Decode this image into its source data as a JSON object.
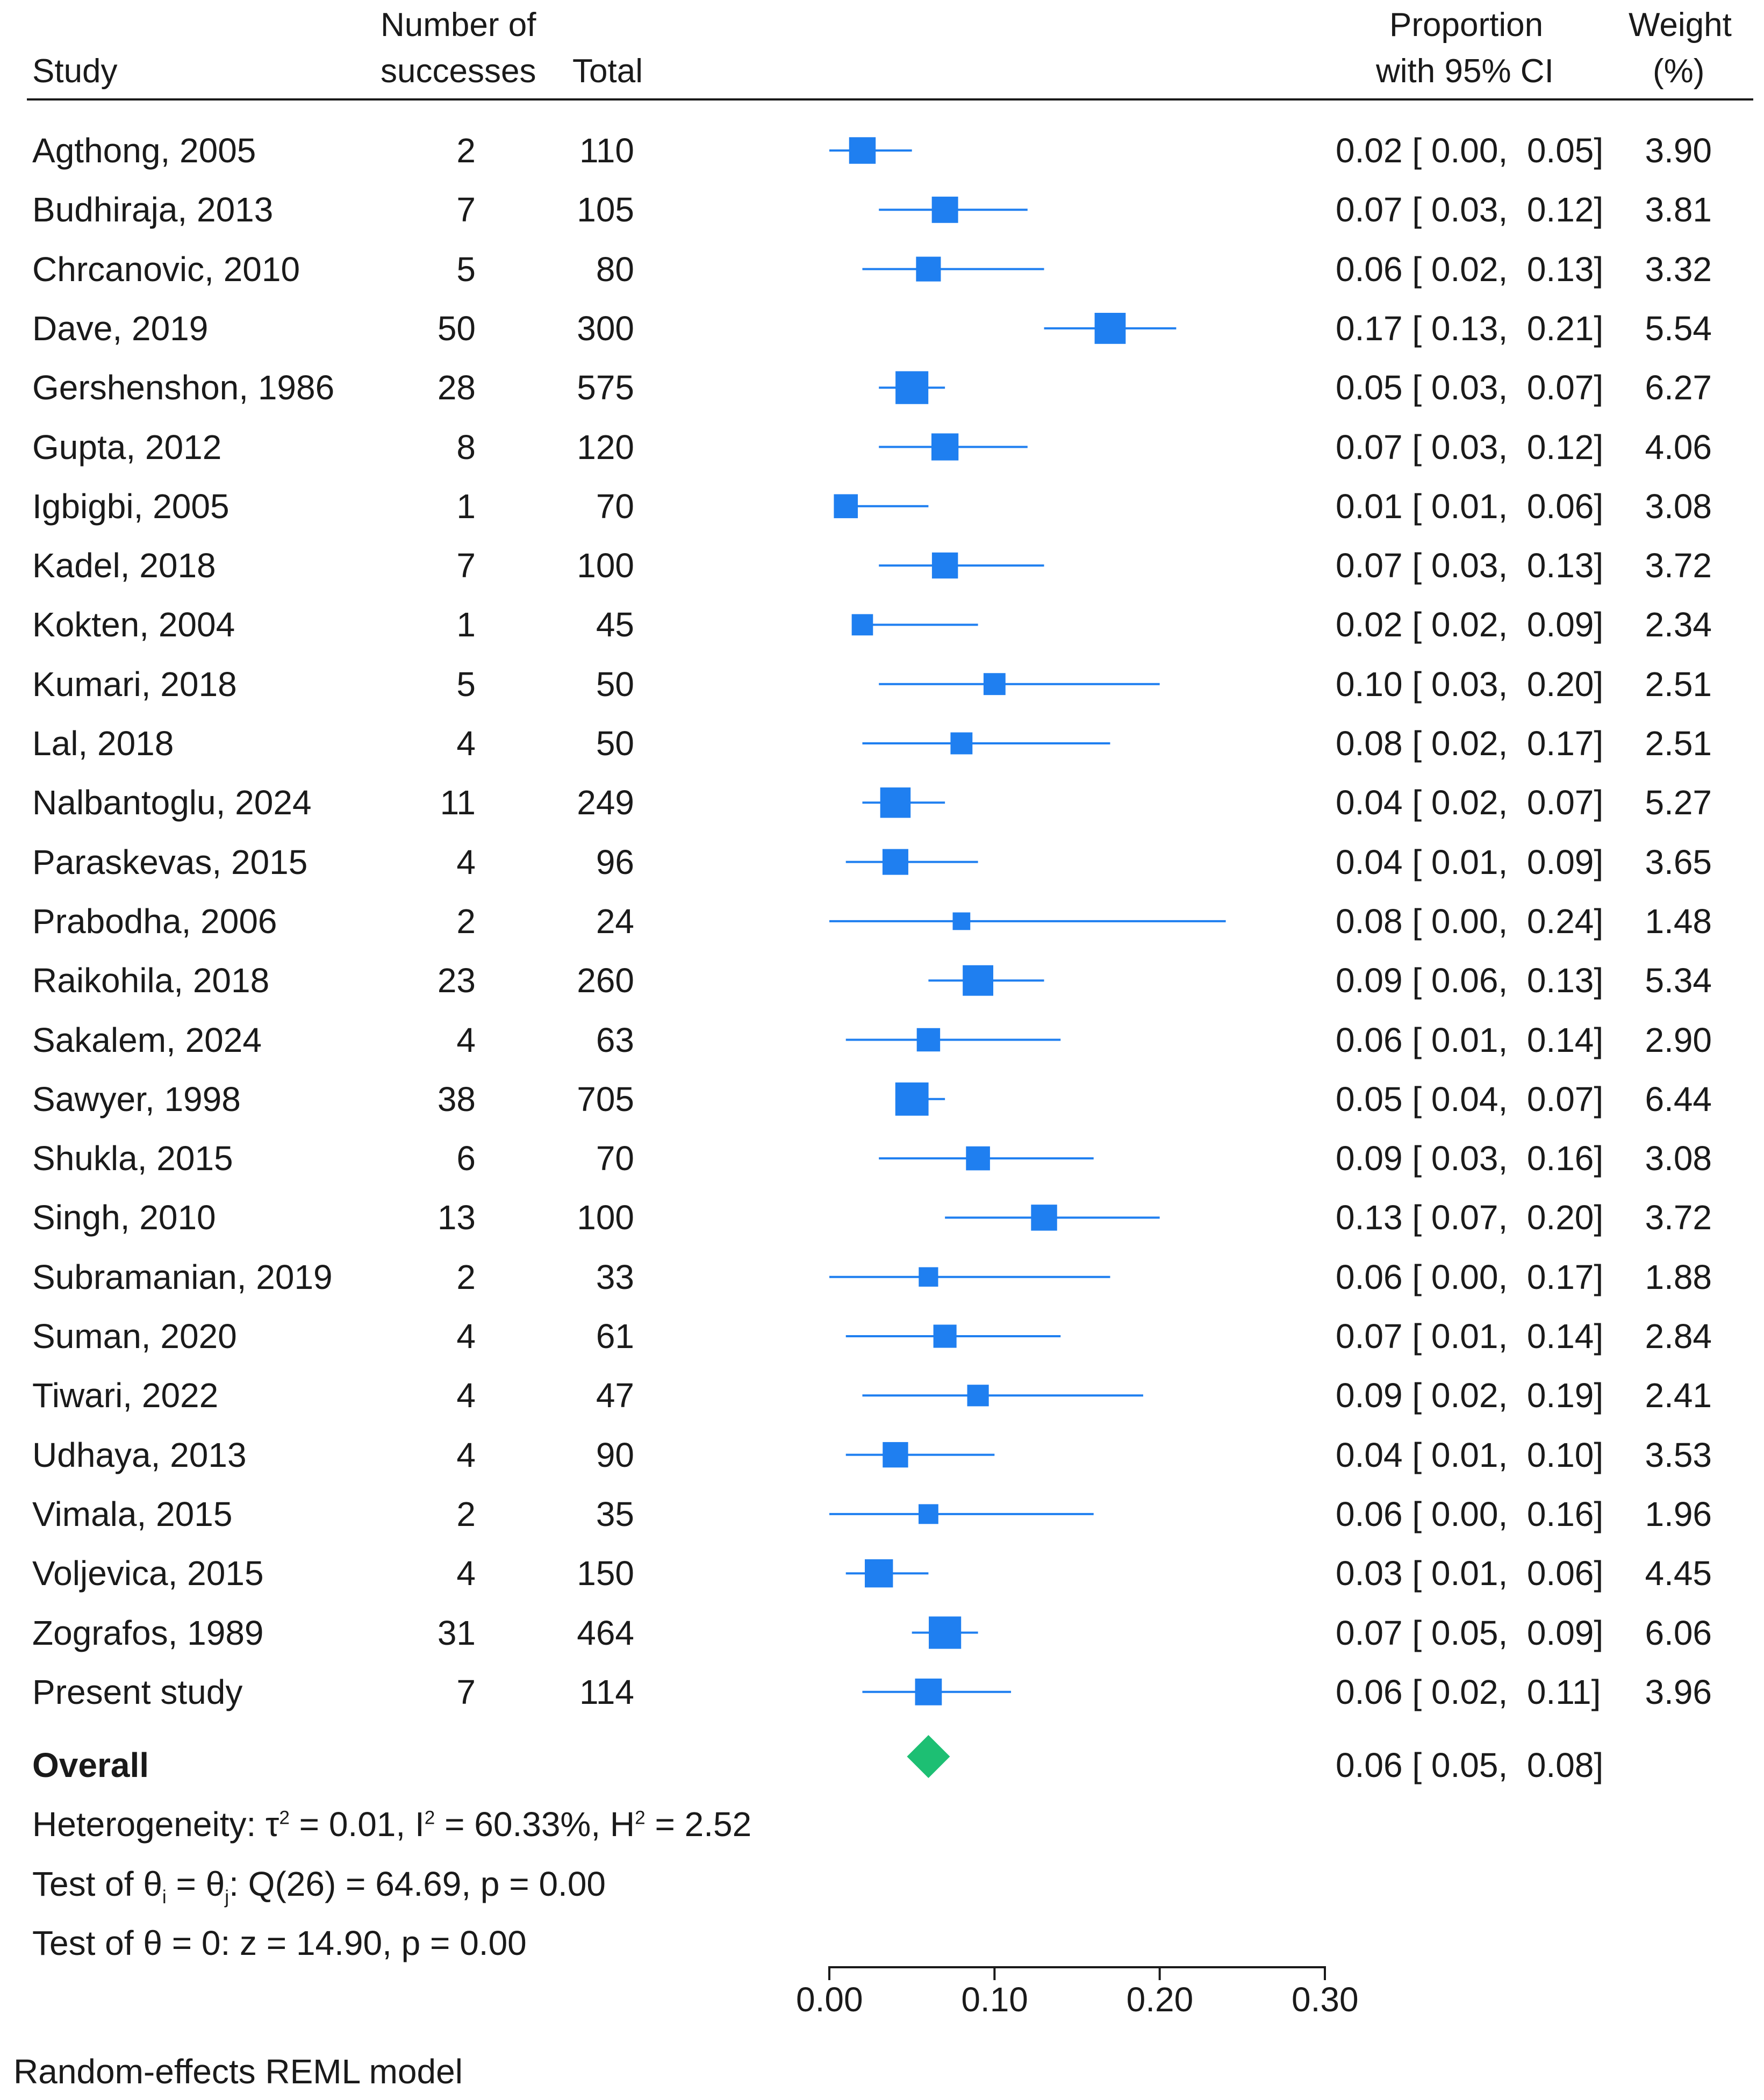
{
  "header": {
    "study": "Study",
    "successes_line1": "Number of",
    "successes_line2": "successes",
    "total": "Total",
    "proportion_line1": "Proportion",
    "proportion_line2": "with 95% CI",
    "weight_line1": "Weight",
    "weight_line2": "(%)"
  },
  "chart_data": {
    "type": "forest",
    "xaxis": {
      "min": 0,
      "max": 0.3,
      "ticks": [
        0,
        0.1,
        0.2,
        0.3
      ],
      "tick_labels": [
        "0.00",
        "0.10",
        "0.20",
        "0.30"
      ]
    },
    "colors": {
      "study_marker": "#1f7ff0",
      "overall_diamond": "#1dbf73",
      "text": "#1a1a1a"
    },
    "studies": [
      {
        "study": "Agthong, 2005",
        "successes": "2",
        "total": "110",
        "est": 0.02,
        "lo": 0.0,
        "hi": 0.05,
        "ci_text": "0.02 [ 0.00,  0.05]",
        "weight": "3.90"
      },
      {
        "study": "Budhiraja, 2013",
        "successes": "7",
        "total": "105",
        "est": 0.07,
        "lo": 0.03,
        "hi": 0.12,
        "ci_text": "0.07 [ 0.03,  0.12]",
        "weight": "3.81"
      },
      {
        "study": "Chrcanovic, 2010",
        "successes": "5",
        "total": "80",
        "est": 0.06,
        "lo": 0.02,
        "hi": 0.13,
        "ci_text": "0.06 [ 0.02,  0.13]",
        "weight": "3.32"
      },
      {
        "study": "Dave, 2019",
        "successes": "50",
        "total": "300",
        "est": 0.17,
        "lo": 0.13,
        "hi": 0.21,
        "ci_text": "0.17 [ 0.13,  0.21]",
        "weight": "5.54"
      },
      {
        "study": "Gershenshon, 1986",
        "successes": "28",
        "total": "575",
        "est": 0.05,
        "lo": 0.03,
        "hi": 0.07,
        "ci_text": "0.05 [ 0.03,  0.07]",
        "weight": "6.27"
      },
      {
        "study": "Gupta, 2012",
        "successes": "8",
        "total": "120",
        "est": 0.07,
        "lo": 0.03,
        "hi": 0.12,
        "ci_text": "0.07 [ 0.03,  0.12]",
        "weight": "4.06"
      },
      {
        "study": "Igbigbi, 2005",
        "successes": "1",
        "total": "70",
        "est": 0.01,
        "lo": 0.01,
        "hi": 0.06,
        "ci_text": "0.01 [ 0.01,  0.06]",
        "weight": "3.08"
      },
      {
        "study": "Kadel, 2018",
        "successes": "7",
        "total": "100",
        "est": 0.07,
        "lo": 0.03,
        "hi": 0.13,
        "ci_text": "0.07 [ 0.03,  0.13]",
        "weight": "3.72"
      },
      {
        "study": "Kokten, 2004",
        "successes": "1",
        "total": "45",
        "est": 0.02,
        "lo": 0.02,
        "hi": 0.09,
        "ci_text": "0.02 [ 0.02,  0.09]",
        "weight": "2.34"
      },
      {
        "study": "Kumari, 2018",
        "successes": "5",
        "total": "50",
        "est": 0.1,
        "lo": 0.03,
        "hi": 0.2,
        "ci_text": "0.10 [ 0.03,  0.20]",
        "weight": "2.51"
      },
      {
        "study": "Lal, 2018",
        "successes": "4",
        "total": "50",
        "est": 0.08,
        "lo": 0.02,
        "hi": 0.17,
        "ci_text": "0.08 [ 0.02,  0.17]",
        "weight": "2.51"
      },
      {
        "study": "Nalbantoglu, 2024",
        "successes": "11",
        "total": "249",
        "est": 0.04,
        "lo": 0.02,
        "hi": 0.07,
        "ci_text": "0.04 [ 0.02,  0.07]",
        "weight": "5.27"
      },
      {
        "study": "Paraskevas, 2015",
        "successes": "4",
        "total": "96",
        "est": 0.04,
        "lo": 0.01,
        "hi": 0.09,
        "ci_text": "0.04 [ 0.01,  0.09]",
        "weight": "3.65"
      },
      {
        "study": "Prabodha, 2006",
        "successes": "2",
        "total": "24",
        "est": 0.08,
        "lo": 0.0,
        "hi": 0.24,
        "ci_text": "0.08 [ 0.00,  0.24]",
        "weight": "1.48"
      },
      {
        "study": "Raikohila, 2018",
        "successes": "23",
        "total": "260",
        "est": 0.09,
        "lo": 0.06,
        "hi": 0.13,
        "ci_text": "0.09 [ 0.06,  0.13]",
        "weight": "5.34"
      },
      {
        "study": "Sakalem, 2024",
        "successes": "4",
        "total": "63",
        "est": 0.06,
        "lo": 0.01,
        "hi": 0.14,
        "ci_text": "0.06 [ 0.01,  0.14]",
        "weight": "2.90"
      },
      {
        "study": "Sawyer, 1998",
        "successes": "38",
        "total": "705",
        "est": 0.05,
        "lo": 0.04,
        "hi": 0.07,
        "ci_text": "0.05 [ 0.04,  0.07]",
        "weight": "6.44"
      },
      {
        "study": "Shukla, 2015",
        "successes": "6",
        "total": "70",
        "est": 0.09,
        "lo": 0.03,
        "hi": 0.16,
        "ci_text": "0.09 [ 0.03,  0.16]",
        "weight": "3.08"
      },
      {
        "study": "Singh, 2010",
        "successes": "13",
        "total": "100",
        "est": 0.13,
        "lo": 0.07,
        "hi": 0.2,
        "ci_text": "0.13 [ 0.07,  0.20]",
        "weight": "3.72"
      },
      {
        "study": "Subramanian, 2019",
        "successes": "2",
        "total": "33",
        "est": 0.06,
        "lo": 0.0,
        "hi": 0.17,
        "ci_text": "0.06 [ 0.00,  0.17]",
        "weight": "1.88"
      },
      {
        "study": "Suman, 2020",
        "successes": "4",
        "total": "61",
        "est": 0.07,
        "lo": 0.01,
        "hi": 0.14,
        "ci_text": "0.07 [ 0.01,  0.14]",
        "weight": "2.84"
      },
      {
        "study": "Tiwari, 2022",
        "successes": "4",
        "total": "47",
        "est": 0.09,
        "lo": 0.02,
        "hi": 0.19,
        "ci_text": "0.09 [ 0.02,  0.19]",
        "weight": "2.41"
      },
      {
        "study": "Udhaya, 2013",
        "successes": "4",
        "total": "90",
        "est": 0.04,
        "lo": 0.01,
        "hi": 0.1,
        "ci_text": "0.04 [ 0.01,  0.10]",
        "weight": "3.53"
      },
      {
        "study": "Vimala, 2015",
        "successes": "2",
        "total": "35",
        "est": 0.06,
        "lo": 0.0,
        "hi": 0.16,
        "ci_text": "0.06 [ 0.00,  0.16]",
        "weight": "1.96"
      },
      {
        "study": "Voljevica, 2015",
        "successes": "4",
        "total": "150",
        "est": 0.03,
        "lo": 0.01,
        "hi": 0.06,
        "ci_text": "0.03 [ 0.01,  0.06]",
        "weight": "4.45"
      },
      {
        "study": "Zografos, 1989",
        "successes": "31",
        "total": "464",
        "est": 0.07,
        "lo": 0.05,
        "hi": 0.09,
        "ci_text": "0.07 [ 0.05,  0.09]",
        "weight": "6.06"
      },
      {
        "study": "Present study",
        "successes": "7",
        "total": "114",
        "est": 0.06,
        "lo": 0.02,
        "hi": 0.11,
        "ci_text": "0.06 [ 0.02,  0.11]",
        "weight": "3.96"
      }
    ],
    "overall": {
      "label": "Overall",
      "est": 0.06,
      "lo": 0.05,
      "hi": 0.08,
      "ci_text": "0.06 [ 0.05,  0.08]"
    }
  },
  "stats": {
    "heterogeneity": {
      "prefix": "Heterogeneity: τ",
      "sup1": "2",
      "mid1": " = 0.01, I",
      "sup2": "2",
      "mid2": " = 60.33%, H",
      "sup3": "2",
      "end": " = 2.52"
    },
    "test_equal": {
      "prefix": "Test of θ",
      "sub1": "i",
      "mid": " = θ",
      "sub2": "j",
      "end": ": Q(26) = 64.69, p = 0.00"
    },
    "test_zero": "Test of θ = 0: z = 14.90, p = 0.00"
  },
  "footer": "Random-effects REML model"
}
